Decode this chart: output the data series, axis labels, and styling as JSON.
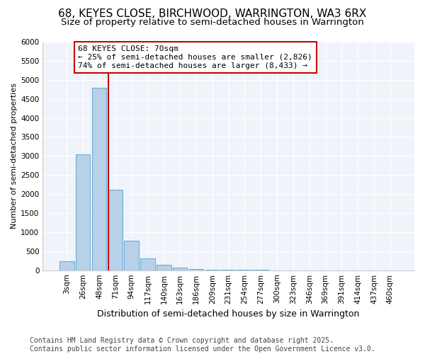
{
  "title1": "68, KEYES CLOSE, BIRCHWOOD, WARRINGTON, WA3 6RX",
  "title2": "Size of property relative to semi-detached houses in Warrington",
  "xlabel": "Distribution of semi-detached houses by size in Warrington",
  "ylabel": "Number of semi-detached properties",
  "categories": [
    "3sqm",
    "26sqm",
    "48sqm",
    "71sqm",
    "94sqm",
    "117sqm",
    "140sqm",
    "163sqm",
    "186sqm",
    "209sqm",
    "231sqm",
    "254sqm",
    "277sqm",
    "300sqm",
    "323sqm",
    "346sqm",
    "369sqm",
    "391sqm",
    "414sqm",
    "437sqm",
    "460sqm"
  ],
  "values": [
    240,
    3050,
    4800,
    2120,
    780,
    310,
    140,
    70,
    40,
    20,
    10,
    5,
    5,
    0,
    0,
    0,
    0,
    0,
    0,
    0,
    0
  ],
  "bar_color": "#b8d0e8",
  "bar_edge_color": "#6aaed6",
  "vline_color": "#cc0000",
  "vline_x_idx": 3,
  "annotation_text": "68 KEYES CLOSE: 70sqm\n← 25% of semi-detached houses are smaller (2,826)\n74% of semi-detached houses are larger (8,433) →",
  "annotation_box_color": "#ffffff",
  "annotation_box_edge": "#cc0000",
  "ylim": [
    0,
    6000
  ],
  "yticks": [
    0,
    500,
    1000,
    1500,
    2000,
    2500,
    3000,
    3500,
    4000,
    4500,
    5000,
    5500,
    6000
  ],
  "footer": "Contains HM Land Registry data © Crown copyright and database right 2025.\nContains public sector information licensed under the Open Government Licence v3.0.",
  "bg_color": "#ffffff",
  "plot_bg_color": "#f0f4fa",
  "grid_color": "#ffffff",
  "title1_fontsize": 11,
  "title2_fontsize": 9.5,
  "xlabel_fontsize": 9,
  "ylabel_fontsize": 8,
  "tick_fontsize": 7.5,
  "footer_fontsize": 7,
  "ann_fontsize": 8
}
